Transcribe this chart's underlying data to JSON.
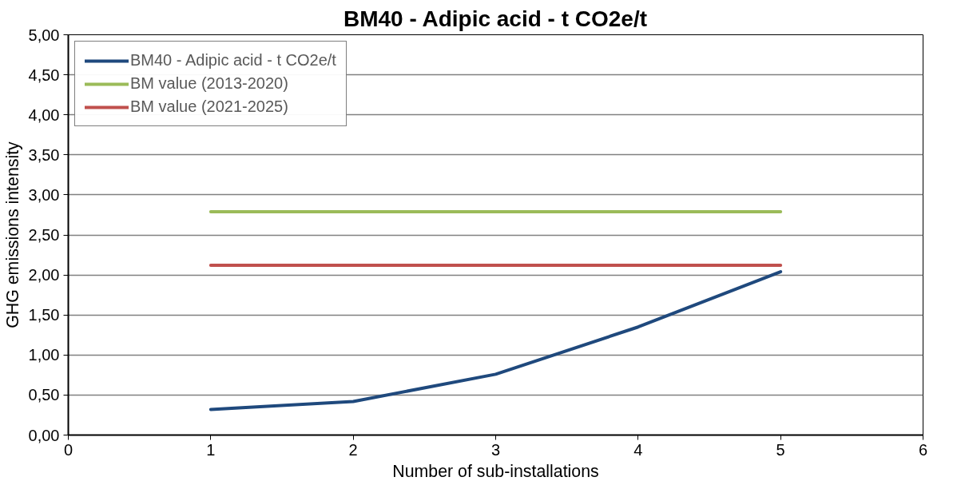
{
  "chart_data": {
    "type": "line",
    "title": "BM40 - Adipic acid - t CO2e/t",
    "xlabel": "Number of sub-installations",
    "ylabel": "GHG emissions intensity",
    "series": [
      {
        "name": "BM40 - Adipic acid - t CO2e/t",
        "color": "#1f497d",
        "x": [
          1,
          2,
          3,
          4,
          5
        ],
        "values": [
          0.32,
          0.42,
          0.76,
          1.35,
          2.04
        ]
      },
      {
        "name": "BM value (2013-2020)",
        "color": "#9bbb59",
        "x": [
          1,
          2,
          3,
          4,
          5
        ],
        "values": [
          2.79,
          2.79,
          2.79,
          2.79,
          2.79
        ]
      },
      {
        "name": "BM value (2021-2025)",
        "color": "#c0504d",
        "x": [
          1,
          2,
          3,
          4,
          5
        ],
        "values": [
          2.12,
          2.12,
          2.12,
          2.12,
          2.12
        ]
      }
    ],
    "xlim": [
      0,
      6
    ],
    "xticks": [
      0,
      1,
      2,
      3,
      4,
      5,
      6
    ],
    "ylim": [
      0,
      5
    ],
    "yticks": [
      {
        "value": 0,
        "label": "0,00"
      },
      {
        "value": 0.5,
        "label": "0,50"
      },
      {
        "value": 1,
        "label": "1,00"
      },
      {
        "value": 1.5,
        "label": "1,50"
      },
      {
        "value": 2,
        "label": "2,00"
      },
      {
        "value": 2.5,
        "label": "2,50"
      },
      {
        "value": 3,
        "label": "3,00"
      },
      {
        "value": 3.5,
        "label": "3,50"
      },
      {
        "value": 4,
        "label": "4,00"
      },
      {
        "value": 4.5,
        "label": "4,50"
      },
      {
        "value": 5,
        "label": "5,00"
      }
    ],
    "grid": "y",
    "legend": "top left",
    "marker": "none",
    "line_style": "solid"
  }
}
